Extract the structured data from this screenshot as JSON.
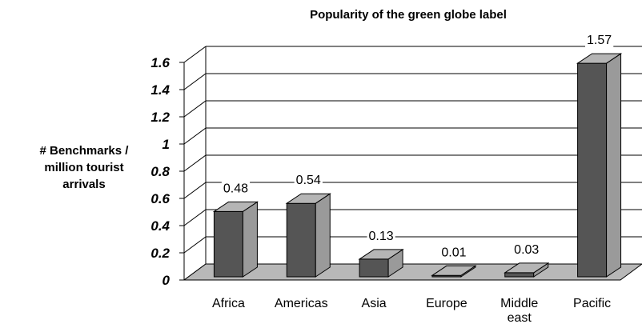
{
  "chart_data": {
    "type": "bar",
    "title": "Popularity of the green globe label",
    "ylabel": "# Benchmarks / million tourist arrivals",
    "xlabel": "",
    "categories": [
      "Africa",
      "Americas",
      "Asia",
      "Europe",
      "Middle east",
      "Pacific"
    ],
    "values": [
      0.48,
      0.54,
      0.13,
      0.01,
      0.03,
      1.57
    ],
    "data_labels": [
      "0.48",
      "0.54",
      "0.13",
      "0.01",
      "0.03",
      "1.57"
    ],
    "ylim": [
      0,
      1.6
    ],
    "yticks": [
      "0",
      "0.2",
      "0.4",
      "0.6",
      "0.8",
      "1",
      "1.2",
      "1.4",
      "1.6"
    ],
    "grid": true,
    "style": "3d",
    "colors": {
      "bar_front": "#555555",
      "bar_side": "#9a9a9a",
      "bar_top": "#b5b5b5",
      "floor": "#b8b8b8"
    }
  }
}
